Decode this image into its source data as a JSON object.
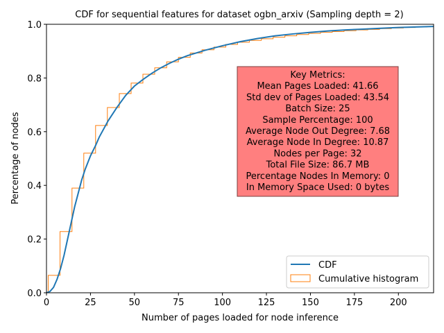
{
  "chart_data": {
    "type": "line",
    "title": "CDF for sequential features for dataset ogbn_arxiv (Sampling depth = 2)",
    "xlabel": "Number of pages loaded for node inference",
    "ylabel": "Percentage of nodes",
    "xlim": [
      0,
      220
    ],
    "ylim": [
      0,
      1.0
    ],
    "xticks": [
      "0",
      "25",
      "50",
      "75",
      "100",
      "125",
      "150",
      "175",
      "200"
    ],
    "yticks": [
      "0.0",
      "0.2",
      "0.4",
      "0.6",
      "0.8",
      "1.0"
    ],
    "grid": false,
    "legend_position": "lower-right",
    "series": [
      {
        "name": "CDF",
        "color": "#1f77b4",
        "x": [
          0,
          2,
          4,
          6,
          8,
          10,
          12,
          14,
          16,
          18,
          20,
          22,
          25,
          28,
          30,
          35,
          40,
          45,
          50,
          55,
          60,
          65,
          70,
          75,
          80,
          90,
          100,
          110,
          120,
          130,
          140,
          150,
          160,
          170,
          180,
          190,
          200,
          210,
          220
        ],
        "values": [
          0.0,
          0.005,
          0.02,
          0.05,
          0.09,
          0.14,
          0.2,
          0.26,
          0.32,
          0.37,
          0.42,
          0.46,
          0.51,
          0.55,
          0.58,
          0.64,
          0.69,
          0.735,
          0.77,
          0.795,
          0.818,
          0.838,
          0.855,
          0.87,
          0.883,
          0.903,
          0.92,
          0.935,
          0.947,
          0.957,
          0.964,
          0.97,
          0.975,
          0.979,
          0.982,
          0.985,
          0.988,
          0.99,
          0.992
        ]
      },
      {
        "name": "Cumulative histogram",
        "color": "#ff7f0e",
        "type": "step",
        "bin_edges": [
          1,
          7.7,
          14.5,
          21.2,
          27.9,
          34.6,
          41.4,
          48.1,
          54.8,
          61.5,
          68.3,
          75,
          81.7,
          88.4,
          95.2,
          101.9,
          108.6,
          115.3,
          122.1,
          128.8,
          135.5,
          142.2,
          149,
          155.7,
          162.4,
          169.1,
          175.9,
          182.6,
          189.3,
          196,
          202.8,
          209.5,
          216.2,
          220
        ],
        "values": [
          0.065,
          0.228,
          0.39,
          0.52,
          0.623,
          0.69,
          0.742,
          0.781,
          0.814,
          0.838,
          0.86,
          0.877,
          0.893,
          0.905,
          0.915,
          0.925,
          0.933,
          0.94,
          0.946,
          0.952,
          0.957,
          0.962,
          0.966,
          0.97,
          0.973,
          0.976,
          0.979,
          0.981,
          0.984,
          0.986,
          0.988,
          0.99,
          0.992
        ]
      }
    ]
  },
  "metrics_box": {
    "color": "#ff7f7f",
    "lines": [
      "Key Metrics:",
      "Mean Pages Loaded: 41.66",
      "Std dev of Pages Loaded: 43.54",
      "Batch Size: 25",
      "Sample Percentage: 100",
      "Average Node Out Degree: 7.68",
      "Average Node In Degree: 10.87",
      "Nodes per Page: 32",
      "Total File Size: 86.7 MB",
      "Percentage Nodes In Memory: 0",
      "In Memory Space Used: 0 bytes"
    ]
  }
}
